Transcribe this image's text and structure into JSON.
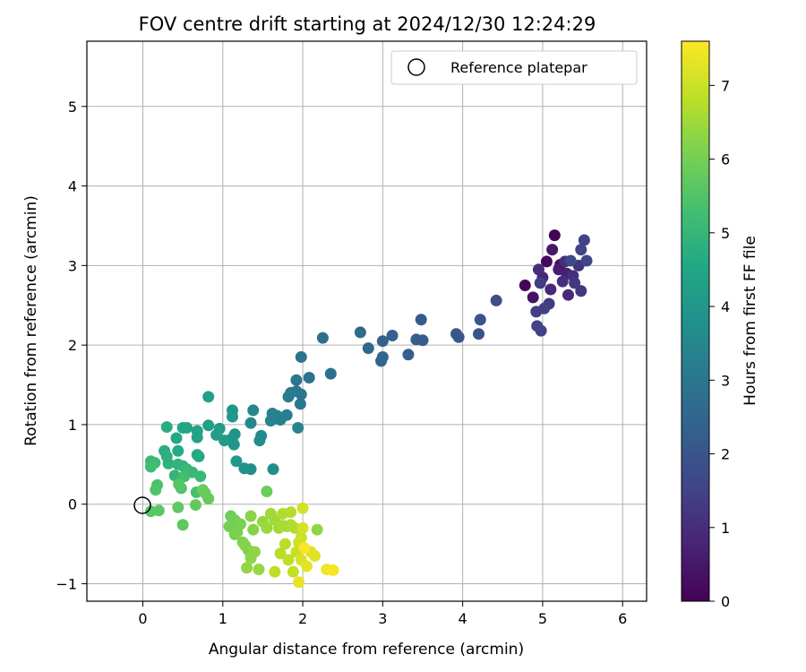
{
  "chart_data": {
    "type": "scatter",
    "title": "FOV centre drift starting at 2024/12/30 12:24:29",
    "xlabel": "Angular distance from reference (arcmin)",
    "ylabel": "Rotation from reference (arcmin)",
    "xlim": [
      -0.7,
      6.3
    ],
    "ylim": [
      -1.22,
      5.82
    ],
    "xticks": [
      0,
      1,
      2,
      3,
      4,
      5,
      6
    ],
    "yticks": [
      -1,
      0,
      1,
      2,
      3,
      4,
      5
    ],
    "grid": true,
    "legend": {
      "position": "top-right",
      "entries": [
        "Reference platepar"
      ]
    },
    "reference_point": {
      "x": 0,
      "y": 0
    },
    "colorbar": {
      "label": "Hours from first FF file",
      "colormap": "viridis",
      "range": [
        0,
        7.6
      ],
      "ticks": [
        0,
        1,
        2,
        3,
        4,
        5,
        6,
        7
      ]
    },
    "points": [
      {
        "x": 5.15,
        "y": 3.38,
        "h": 0.05
      },
      {
        "x": 4.78,
        "y": 2.75,
        "h": 0.1
      },
      {
        "x": 5.05,
        "y": 3.05,
        "h": 0.15
      },
      {
        "x": 5.22,
        "y": 3.01,
        "h": 0.3
      },
      {
        "x": 4.88,
        "y": 2.6,
        "h": 0.35
      },
      {
        "x": 5.12,
        "y": 3.2,
        "h": 0.5
      },
      {
        "x": 5.2,
        "y": 2.95,
        "h": 0.6
      },
      {
        "x": 5.3,
        "y": 2.9,
        "h": 0.7
      },
      {
        "x": 5.0,
        "y": 2.85,
        "h": 0.8
      },
      {
        "x": 5.1,
        "y": 2.7,
        "h": 0.85
      },
      {
        "x": 5.32,
        "y": 2.63,
        "h": 0.9
      },
      {
        "x": 4.95,
        "y": 2.95,
        "h": 1.0
      },
      {
        "x": 5.28,
        "y": 3.05,
        "h": 1.0
      },
      {
        "x": 5.25,
        "y": 2.8,
        "h": 1.05
      },
      {
        "x": 5.38,
        "y": 2.87,
        "h": 1.1
      },
      {
        "x": 5.45,
        "y": 3.0,
        "h": 1.15
      },
      {
        "x": 5.48,
        "y": 2.68,
        "h": 1.2
      },
      {
        "x": 5.4,
        "y": 2.78,
        "h": 1.25
      },
      {
        "x": 5.08,
        "y": 2.52,
        "h": 1.3
      },
      {
        "x": 4.97,
        "y": 2.78,
        "h": 1.35
      },
      {
        "x": 4.92,
        "y": 2.42,
        "h": 1.4
      },
      {
        "x": 5.02,
        "y": 2.46,
        "h": 1.45
      },
      {
        "x": 4.98,
        "y": 2.18,
        "h": 1.5
      },
      {
        "x": 4.93,
        "y": 2.24,
        "h": 1.55
      },
      {
        "x": 5.52,
        "y": 3.32,
        "h": 1.5
      },
      {
        "x": 5.55,
        "y": 3.06,
        "h": 1.6
      },
      {
        "x": 5.48,
        "y": 3.2,
        "h": 1.55
      },
      {
        "x": 5.35,
        "y": 3.06,
        "h": 1.65
      },
      {
        "x": 4.42,
        "y": 2.56,
        "h": 1.8
      },
      {
        "x": 4.22,
        "y": 2.32,
        "h": 1.9
      },
      {
        "x": 4.2,
        "y": 2.14,
        "h": 1.95
      },
      {
        "x": 3.95,
        "y": 2.1,
        "h": 2.0
      },
      {
        "x": 3.92,
        "y": 2.14,
        "h": 2.05
      },
      {
        "x": 3.48,
        "y": 2.32,
        "h": 2.15
      },
      {
        "x": 3.5,
        "y": 2.06,
        "h": 2.2
      },
      {
        "x": 3.42,
        "y": 2.07,
        "h": 2.25
      },
      {
        "x": 3.32,
        "y": 1.88,
        "h": 2.3
      },
      {
        "x": 3.12,
        "y": 2.12,
        "h": 2.35
      },
      {
        "x": 3.0,
        "y": 2.05,
        "h": 2.4
      },
      {
        "x": 3.0,
        "y": 1.85,
        "h": 2.45
      },
      {
        "x": 2.98,
        "y": 1.8,
        "h": 2.5
      },
      {
        "x": 2.82,
        "y": 1.96,
        "h": 2.55
      },
      {
        "x": 2.72,
        "y": 2.16,
        "h": 2.6
      },
      {
        "x": 2.35,
        "y": 1.64,
        "h": 2.75
      },
      {
        "x": 2.25,
        "y": 2.09,
        "h": 2.8
      },
      {
        "x": 2.08,
        "y": 1.59,
        "h": 2.85
      },
      {
        "x": 1.98,
        "y": 1.85,
        "h": 2.9
      },
      {
        "x": 1.92,
        "y": 1.56,
        "h": 2.95
      },
      {
        "x": 1.98,
        "y": 1.38,
        "h": 3.0
      },
      {
        "x": 1.97,
        "y": 1.26,
        "h": 3.05
      },
      {
        "x": 1.92,
        "y": 1.42,
        "h": 3.05
      },
      {
        "x": 1.85,
        "y": 1.4,
        "h": 3.1
      },
      {
        "x": 1.82,
        "y": 1.35,
        "h": 3.15
      },
      {
        "x": 1.8,
        "y": 1.12,
        "h": 3.2
      },
      {
        "x": 1.72,
        "y": 1.06,
        "h": 3.25
      },
      {
        "x": 1.68,
        "y": 1.11,
        "h": 3.3
      },
      {
        "x": 1.62,
        "y": 1.14,
        "h": 3.35
      },
      {
        "x": 1.6,
        "y": 1.05,
        "h": 3.4
      },
      {
        "x": 1.94,
        "y": 0.96,
        "h": 3.45
      },
      {
        "x": 1.38,
        "y": 1.18,
        "h": 3.5
      },
      {
        "x": 1.35,
        "y": 1.02,
        "h": 3.55
      },
      {
        "x": 1.48,
        "y": 0.86,
        "h": 3.6
      },
      {
        "x": 1.46,
        "y": 0.8,
        "h": 3.65
      },
      {
        "x": 1.63,
        "y": 0.44,
        "h": 3.7
      },
      {
        "x": 1.35,
        "y": 0.44,
        "h": 3.75
      },
      {
        "x": 1.27,
        "y": 0.45,
        "h": 3.8
      },
      {
        "x": 1.15,
        "y": 0.88,
        "h": 3.85
      },
      {
        "x": 1.12,
        "y": 0.83,
        "h": 3.9
      },
      {
        "x": 1.14,
        "y": 0.75,
        "h": 3.95
      },
      {
        "x": 1.12,
        "y": 1.18,
        "h": 3.95
      },
      {
        "x": 1.12,
        "y": 1.1,
        "h": 4.0
      },
      {
        "x": 1.17,
        "y": 0.54,
        "h": 4.05
      },
      {
        "x": 1.02,
        "y": 0.8,
        "h": 4.1
      },
      {
        "x": 0.96,
        "y": 0.95,
        "h": 4.15
      },
      {
        "x": 0.92,
        "y": 0.87,
        "h": 4.2
      },
      {
        "x": 0.82,
        "y": 0.99,
        "h": 4.25
      },
      {
        "x": 0.82,
        "y": 1.35,
        "h": 4.3
      },
      {
        "x": 0.68,
        "y": 0.92,
        "h": 4.35
      },
      {
        "x": 0.68,
        "y": 0.84,
        "h": 4.4
      },
      {
        "x": 0.55,
        "y": 0.96,
        "h": 4.45
      },
      {
        "x": 0.5,
        "y": 0.96,
        "h": 4.5
      },
      {
        "x": 0.42,
        "y": 0.83,
        "h": 4.55
      },
      {
        "x": 0.68,
        "y": 0.62,
        "h": 4.6
      },
      {
        "x": 0.7,
        "y": 0.6,
        "h": 4.6
      },
      {
        "x": 0.44,
        "y": 0.67,
        "h": 4.65
      },
      {
        "x": 0.3,
        "y": 0.97,
        "h": 4.7
      },
      {
        "x": 0.27,
        "y": 0.67,
        "h": 4.75
      },
      {
        "x": 0.3,
        "y": 0.6,
        "h": 4.8
      },
      {
        "x": 0.32,
        "y": 0.51,
        "h": 4.85
      },
      {
        "x": 0.44,
        "y": 0.5,
        "h": 4.9
      },
      {
        "x": 0.5,
        "y": 0.48,
        "h": 4.95
      },
      {
        "x": 0.4,
        "y": 0.36,
        "h": 5.0
      },
      {
        "x": 0.55,
        "y": 0.44,
        "h": 5.05
      },
      {
        "x": 0.62,
        "y": 0.4,
        "h": 5.05
      },
      {
        "x": 0.72,
        "y": 0.35,
        "h": 5.1
      },
      {
        "x": 0.1,
        "y": 0.54,
        "h": 5.15
      },
      {
        "x": 0.15,
        "y": 0.52,
        "h": 5.2
      },
      {
        "x": 0.1,
        "y": 0.47,
        "h": 5.25
      },
      {
        "x": 0.52,
        "y": 0.35,
        "h": 5.3
      },
      {
        "x": 0.67,
        "y": 0.15,
        "h": 5.35
      },
      {
        "x": 0.18,
        "y": 0.24,
        "h": 5.4
      },
      {
        "x": 0.16,
        "y": 0.18,
        "h": 5.45
      },
      {
        "x": 0.48,
        "y": 0.2,
        "h": 5.5
      },
      {
        "x": 0.45,
        "y": 0.25,
        "h": 5.55
      },
      {
        "x": 0.1,
        "y": -0.09,
        "h": 5.6
      },
      {
        "x": 0.2,
        "y": -0.08,
        "h": 5.65
      },
      {
        "x": 0.44,
        "y": -0.04,
        "h": 5.7
      },
      {
        "x": 0.5,
        "y": -0.26,
        "h": 5.7
      },
      {
        "x": 0.66,
        "y": -0.01,
        "h": 5.75
      },
      {
        "x": 0.78,
        "y": 0.14,
        "h": 5.8
      },
      {
        "x": 0.82,
        "y": 0.07,
        "h": 5.8
      },
      {
        "x": 0.75,
        "y": 0.18,
        "h": 5.85
      },
      {
        "x": 1.55,
        "y": 0.16,
        "h": 5.85
      },
      {
        "x": 1.1,
        "y": -0.15,
        "h": 5.9
      },
      {
        "x": 1.15,
        "y": -0.2,
        "h": 5.95
      },
      {
        "x": 1.08,
        "y": -0.28,
        "h": 6.0
      },
      {
        "x": 1.15,
        "y": -0.38,
        "h": 6.0
      },
      {
        "x": 1.22,
        "y": -0.25,
        "h": 6.05
      },
      {
        "x": 1.25,
        "y": -0.48,
        "h": 6.1
      },
      {
        "x": 1.18,
        "y": -0.35,
        "h": 6.1
      },
      {
        "x": 1.32,
        "y": -0.58,
        "h": 6.15
      },
      {
        "x": 1.28,
        "y": -0.52,
        "h": 6.2
      },
      {
        "x": 1.38,
        "y": -0.32,
        "h": 6.2
      },
      {
        "x": 1.35,
        "y": -0.15,
        "h": 6.25
      },
      {
        "x": 1.4,
        "y": -0.6,
        "h": 6.3
      },
      {
        "x": 1.35,
        "y": -0.68,
        "h": 6.3
      },
      {
        "x": 1.3,
        "y": -0.8,
        "h": 6.35
      },
      {
        "x": 1.45,
        "y": -0.82,
        "h": 6.4
      },
      {
        "x": 1.5,
        "y": -0.22,
        "h": 6.4
      },
      {
        "x": 1.55,
        "y": -0.3,
        "h": 6.45
      },
      {
        "x": 1.6,
        "y": -0.12,
        "h": 6.5
      },
      {
        "x": 1.65,
        "y": -0.2,
        "h": 6.5
      },
      {
        "x": 1.7,
        "y": -0.3,
        "h": 6.55
      },
      {
        "x": 1.75,
        "y": -0.27,
        "h": 6.6
      },
      {
        "x": 1.8,
        "y": -0.28,
        "h": 6.6
      },
      {
        "x": 1.85,
        "y": -0.26,
        "h": 6.65
      },
      {
        "x": 1.9,
        "y": -0.3,
        "h": 6.7
      },
      {
        "x": 1.75,
        "y": -0.12,
        "h": 6.7
      },
      {
        "x": 1.85,
        "y": -0.1,
        "h": 6.75
      },
      {
        "x": 1.72,
        "y": -0.62,
        "h": 6.8
      },
      {
        "x": 1.78,
        "y": -0.5,
        "h": 6.8
      },
      {
        "x": 1.82,
        "y": -0.7,
        "h": 6.85
      },
      {
        "x": 1.65,
        "y": -0.85,
        "h": 6.85
      },
      {
        "x": 1.88,
        "y": -0.85,
        "h": 6.9
      },
      {
        "x": 1.92,
        "y": -0.6,
        "h": 6.95
      },
      {
        "x": 1.98,
        "y": -0.42,
        "h": 7.0
      },
      {
        "x": 1.95,
        "y": -0.48,
        "h": 7.05
      },
      {
        "x": 2.0,
        "y": -0.05,
        "h": 7.1
      },
      {
        "x": 2.0,
        "y": -0.3,
        "h": 7.1
      },
      {
        "x": 1.98,
        "y": -0.7,
        "h": 7.15
      },
      {
        "x": 2.1,
        "y": -0.6,
        "h": 7.2
      },
      {
        "x": 2.15,
        "y": -0.65,
        "h": 7.25
      },
      {
        "x": 2.05,
        "y": -0.78,
        "h": 7.3
      },
      {
        "x": 1.95,
        "y": -0.98,
        "h": 7.35
      },
      {
        "x": 2.3,
        "y": -0.82,
        "h": 7.45
      },
      {
        "x": 2.38,
        "y": -0.83,
        "h": 7.5
      },
      {
        "x": 2.02,
        "y": -0.55,
        "h": 7.55
      },
      {
        "x": 2.18,
        "y": -0.32,
        "h": 6.3
      }
    ]
  }
}
